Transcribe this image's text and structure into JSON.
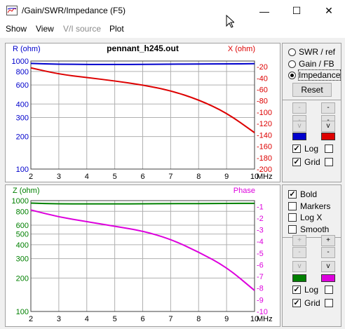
{
  "window": {
    "title": "/Gain/SWR/Impedance (F5)"
  },
  "controls": {
    "minimize": "—",
    "maximize": "☐",
    "close": "✕"
  },
  "menu": [
    "Show",
    "View",
    "V/I source",
    "Plot"
  ],
  "top_chart": {
    "title": "pennant_h245.out",
    "left_label": "R (ohm)",
    "right_label": "X (ohm)",
    "left_color": "#0000cc",
    "right_color": "#dd0000",
    "left_ticks": [
      "1000",
      "800",
      "600",
      "400",
      "300",
      "200",
      "100"
    ],
    "right_ticks": [
      "-20",
      "-40",
      "-60",
      "-80",
      "-100",
      "-120",
      "-140",
      "-160",
      "-180",
      "-200"
    ],
    "x_ticks": [
      "2",
      "3",
      "4",
      "5",
      "6",
      "7",
      "8",
      "9",
      "10"
    ],
    "x_unit": "MHz"
  },
  "bottom_chart": {
    "left_label": "Z (ohm)",
    "right_label": "Phase",
    "left_color": "#008000",
    "right_color": "#dd00dd",
    "left_ticks": [
      "1000",
      "800",
      "600",
      "500",
      "400",
      "300",
      "200",
      "100"
    ],
    "right_ticks": [
      "-1",
      "-2",
      "-3",
      "-4",
      "-5",
      "-6",
      "-7",
      "-8",
      "-9",
      "-10"
    ],
    "x_ticks": [
      "2",
      "3",
      "4",
      "5",
      "6",
      "7",
      "8",
      "9",
      "10"
    ],
    "x_unit": "MHz"
  },
  "chart_data": [
    {
      "type": "line",
      "title": "pennant_h245.out",
      "xlabel": "MHz",
      "ylabel": "R (ohm)",
      "y2label": "X (ohm)",
      "x": [
        2,
        3,
        4,
        5,
        6,
        7,
        8,
        9,
        10
      ],
      "series": [
        {
          "name": "R (ohm)",
          "axis": "left",
          "scale": "log",
          "ylim": [
            100,
            1000
          ],
          "color": "#0000cc",
          "values": [
            950,
            935,
            930,
            930,
            930,
            935,
            940,
            940,
            945
          ]
        },
        {
          "name": "X (ohm)",
          "axis": "right",
          "ylim": [
            -200,
            -10
          ],
          "color": "#dd0000",
          "values": [
            -22,
            -33,
            -39,
            -45,
            -52,
            -62,
            -78,
            -101,
            -136
          ]
        }
      ]
    },
    {
      "type": "line",
      "xlabel": "MHz",
      "ylabel": "Z (ohm)",
      "y2label": "Phase",
      "x": [
        2,
        3,
        4,
        5,
        6,
        7,
        8,
        9,
        10
      ],
      "series": [
        {
          "name": "Z (ohm)",
          "axis": "left",
          "scale": "log",
          "ylim": [
            100,
            1000
          ],
          "color": "#008000",
          "values": [
            950,
            935,
            935,
            935,
            935,
            940,
            940,
            945,
            945
          ]
        },
        {
          "name": "Phase",
          "axis": "right",
          "ylim": [
            -10,
            -0.5
          ],
          "color": "#dd00dd",
          "values": [
            -1.3,
            -1.9,
            -2.3,
            -2.7,
            -3.1,
            -3.8,
            -4.9,
            -6.2,
            -8.2
          ]
        }
      ]
    }
  ],
  "panel_top": {
    "radios": [
      "SWR / ref",
      "Gain / FB",
      "Impedance"
    ],
    "selected": 2,
    "reset": "Reset",
    "sbtn_plus": "-",
    "sbtn_minus": "-",
    "sbtn_v": "v",
    "log": "Log",
    "grid": "Grid"
  },
  "panel_bottom": {
    "checks": [
      "Bold",
      "Markers",
      "Log X",
      "Smooth"
    ],
    "checked": [
      true,
      false,
      false,
      false
    ],
    "sbtn_plus": "+",
    "sbtn_minus": "-",
    "sbtn_v": "v",
    "log": "Log",
    "grid": "Grid"
  }
}
